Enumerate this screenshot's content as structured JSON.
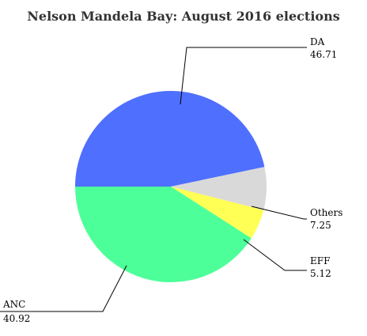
{
  "chart_data": {
    "type": "pie",
    "title": "Nelson Mandela Bay: August 2016 elections",
    "slices": [
      {
        "name": "DA",
        "value": 46.71,
        "value_label": "46.71",
        "color": "#4f6fff"
      },
      {
        "name": "Others",
        "value": 7.25,
        "value_label": "7.25",
        "color": "#d9d9d9"
      },
      {
        "name": "EFF",
        "value": 5.12,
        "value_label": "5.12",
        "color": "#ffff55"
      },
      {
        "name": "ANC",
        "value": 40.92,
        "value_label": "40.92",
        "color": "#4dff99"
      }
    ],
    "start_angle": "left (9 o'clock), clockwise",
    "labels": "outside with leader lines"
  }
}
